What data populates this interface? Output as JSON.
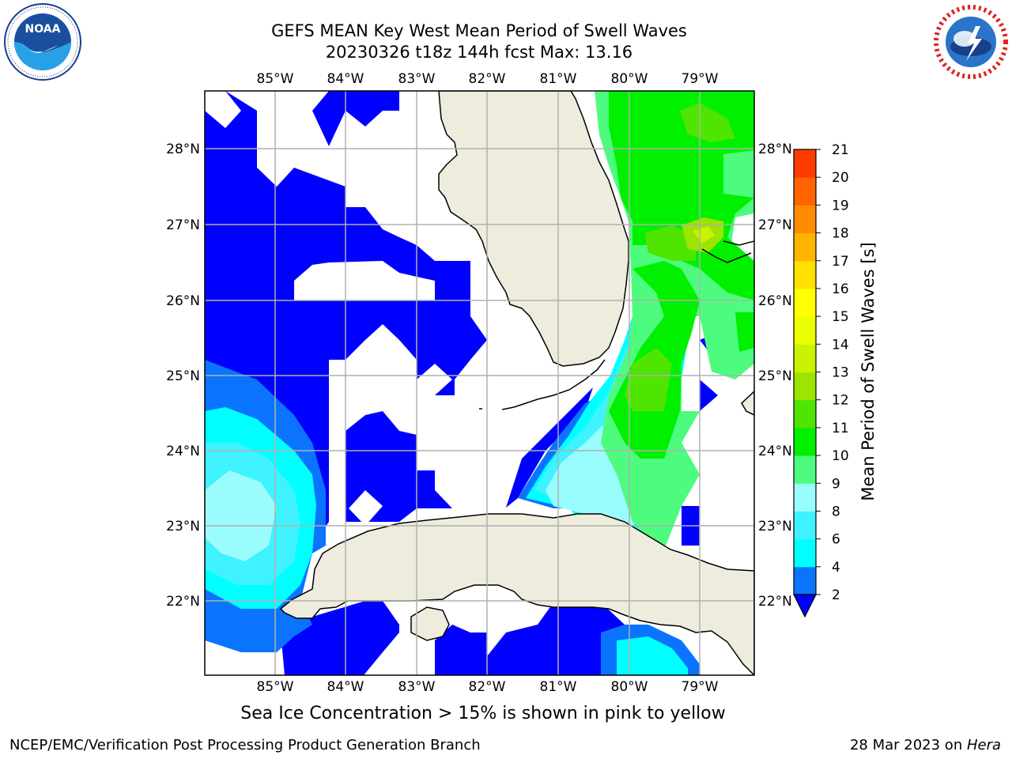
{
  "header": {
    "title_line1": "GEFS MEAN Key West Mean Period of Swell Waves",
    "title_line2": "20230326 t18z 144h fcst   Max: 13.16"
  },
  "logos": {
    "noaa_text": "NOAA",
    "noaa_ring_text": "NATIONAL OCEANIC AND ATMOSPHERIC ADMINISTRATION · U.S. DEPARTMENT OF COMMERCE",
    "nws_ring_text": "NATIONAL WEATHER SERVICE"
  },
  "map": {
    "lon_ticks": [
      "85°W",
      "84°W",
      "83°W",
      "82°W",
      "81°W",
      "80°W",
      "79°W"
    ],
    "lat_ticks": [
      "28°N",
      "27°N",
      "26°N",
      "25°N",
      "24°N",
      "23°N",
      "22°N"
    ],
    "land_color": "#eeecdc",
    "grid_color": "#b0b0b0"
  },
  "colorbar": {
    "label": "Mean Period of Swell Waves [s]",
    "ticks": [
      "2",
      "4",
      "6",
      "8",
      "9",
      "10",
      "11",
      "12",
      "13",
      "14",
      "15",
      "16",
      "17",
      "18",
      "19",
      "20",
      "21"
    ],
    "colors": [
      "#0a74ff",
      "#00ffff",
      "#3ff2ff",
      "#9afdfd",
      "#4dfc7e",
      "#00f000",
      "#4fe500",
      "#9be500",
      "#cbf200",
      "#eaff00",
      "#ffff00",
      "#ffe000",
      "#ffb400",
      "#ff8c00",
      "#ff6400",
      "#ff3c00",
      "#ff0000"
    ],
    "under_color": "#0000ff"
  },
  "footer": {
    "caption": "Sea Ice Concentration > 15% is shown in pink to yellow",
    "credit": "NCEP/EMC/Verification Post Processing Product Generation Branch",
    "date": "28 Mar 2023 on ",
    "machine": "Hera"
  }
}
